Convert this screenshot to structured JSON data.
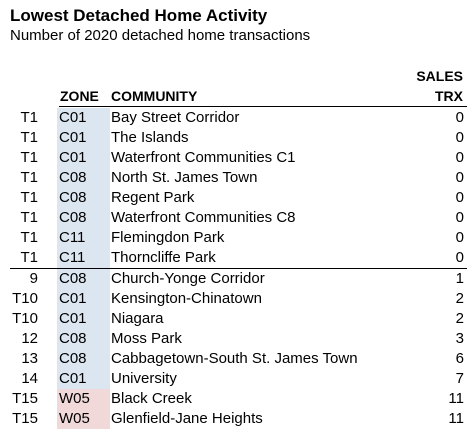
{
  "title": "Lowest Detached Home Activity",
  "subtitle": "Number of 2020 detached home transactions",
  "headers": {
    "zone": "ZONE",
    "community": "COMMUNITY",
    "sales": "SALES",
    "trx": "TRX"
  },
  "colors": {
    "central_zone_fill": "#dce6f1",
    "west_zone_fill": "#f2d9d9"
  },
  "rows": [
    {
      "rank": "T1",
      "zone": "C01",
      "community": "Bay Street Corridor",
      "trx": "0"
    },
    {
      "rank": "T1",
      "zone": "C01",
      "community": "The Islands",
      "trx": "0"
    },
    {
      "rank": "T1",
      "zone": "C01",
      "community": "Waterfront Communities C1",
      "trx": "0"
    },
    {
      "rank": "T1",
      "zone": "C08",
      "community": "North St. James Town",
      "trx": "0"
    },
    {
      "rank": "T1",
      "zone": "C08",
      "community": "Regent Park",
      "trx": "0"
    },
    {
      "rank": "T1",
      "zone": "C08",
      "community": "Waterfront Communities C8",
      "trx": "0"
    },
    {
      "rank": "T1",
      "zone": "C11",
      "community": "Flemingdon Park",
      "trx": "0"
    },
    {
      "rank": "T1",
      "zone": "C11",
      "community": "Thorncliffe Park",
      "trx": "0"
    },
    {
      "rank": "9",
      "zone": "C08",
      "community": "Church-Yonge Corridor",
      "trx": "1"
    },
    {
      "rank": "T10",
      "zone": "C01",
      "community": "Kensington-Chinatown",
      "trx": "2"
    },
    {
      "rank": "T10",
      "zone": "C01",
      "community": "Niagara",
      "trx": "2"
    },
    {
      "rank": "12",
      "zone": "C08",
      "community": "Moss Park",
      "trx": "3"
    },
    {
      "rank": "13",
      "zone": "C08",
      "community": "Cabbagetown-South St. James Town",
      "trx": "6"
    },
    {
      "rank": "14",
      "zone": "C01",
      "community": "University",
      "trx": "7"
    },
    {
      "rank": "T15",
      "zone": "W05",
      "community": "Black Creek",
      "trx": "11"
    },
    {
      "rank": "T15",
      "zone": "W05",
      "community": "Glenfield-Jane Heights",
      "trx": "11"
    }
  ]
}
